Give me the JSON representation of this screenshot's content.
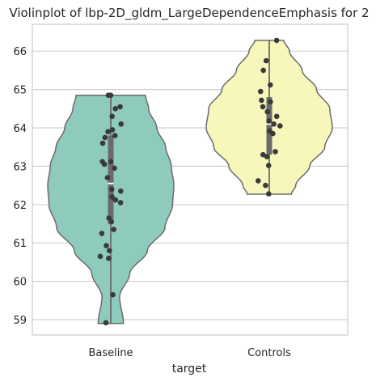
{
  "chart_data": {
    "type": "violin",
    "title": "Violinplot of lbp-2D_gldm_LargeDependenceEmphasis for 2",
    "xlabel": "target",
    "ylabel": "",
    "categories": [
      "Baseline",
      "Controls"
    ],
    "ylim": [
      58.6,
      66.7
    ],
    "yticks": [
      59,
      60,
      61,
      62,
      63,
      64,
      65,
      66
    ],
    "grid": true,
    "colors": {
      "Baseline": "#8ecbbd",
      "Controls": "#f7f6bb",
      "outline": "#6b6b6b",
      "points": "#3a3a3a",
      "grid": "#d0d0d0"
    },
    "series": [
      {
        "category": "Baseline",
        "min": 58.9,
        "q1": 61.5,
        "median": 62.55,
        "q3": 63.8,
        "max": 64.85,
        "profile": [
          [
            58.9,
            0.2
          ],
          [
            59.6,
            0.14
          ],
          [
            60.2,
            0.3
          ],
          [
            60.8,
            0.58
          ],
          [
            61.4,
            0.86
          ],
          [
            62.0,
            0.98
          ],
          [
            62.5,
            1.0
          ],
          [
            63.0,
            0.96
          ],
          [
            63.5,
            0.87
          ],
          [
            64.0,
            0.73
          ],
          [
            64.5,
            0.6
          ],
          [
            64.85,
            0.55
          ]
        ],
        "points": [
          64.85,
          64.85,
          64.55,
          64.5,
          64.3,
          64.1,
          63.95,
          63.9,
          63.8,
          63.75,
          63.6,
          63.12,
          63.12,
          63.05,
          62.95,
          62.7,
          62.4,
          62.35,
          62.2,
          62.12,
          62.05,
          61.65,
          61.55,
          61.35,
          61.25,
          60.93,
          60.8,
          60.65,
          60.6,
          59.65,
          58.92
        ]
      },
      {
        "category": "Controls",
        "min": 62.27,
        "q1": 63.3,
        "median": 64.1,
        "q3": 64.8,
        "max": 66.28,
        "profile": [
          [
            62.27,
            0.35
          ],
          [
            62.5,
            0.42
          ],
          [
            63.0,
            0.64
          ],
          [
            63.5,
            0.88
          ],
          [
            64.0,
            1.0
          ],
          [
            64.5,
            0.96
          ],
          [
            65.0,
            0.75
          ],
          [
            65.5,
            0.52
          ],
          [
            66.0,
            0.32
          ],
          [
            66.28,
            0.23
          ]
        ],
        "points": [
          66.28,
          65.75,
          65.5,
          65.12,
          64.95,
          64.72,
          64.68,
          64.55,
          64.42,
          64.3,
          64.18,
          64.1,
          64.05,
          63.92,
          63.85,
          63.38,
          63.3,
          63.25,
          63.02,
          62.62,
          62.5,
          62.28
        ]
      }
    ]
  }
}
